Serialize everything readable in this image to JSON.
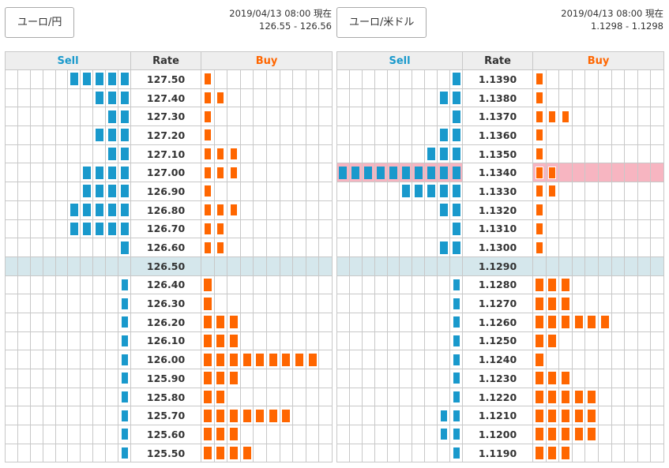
{
  "colors": {
    "sell": "#1999cc",
    "buy": "#ff6600",
    "current_row": "#d5e7ec",
    "highlight_row": "#f7b5c1"
  },
  "headers": {
    "sell": "Sell",
    "rate": "Rate",
    "buy": "Buy"
  },
  "panels": [
    {
      "pair_label": "ユーロ/円",
      "timestamp": "2019/04/13 08:00 現在",
      "bid_ask": "126.55 - 126.56",
      "sell_cells": 10,
      "buy_cells": 10,
      "rows": [
        {
          "rate": "127.50",
          "sell": {
            "filled": 5,
            "empty": 0
          },
          "buy": {
            "filled": 0,
            "empty": 1
          }
        },
        {
          "rate": "127.40",
          "sell": {
            "filled": 3,
            "empty": 0
          },
          "buy": {
            "filled": 0,
            "empty": 2
          }
        },
        {
          "rate": "127.30",
          "sell": {
            "filled": 2,
            "empty": 0
          },
          "buy": {
            "filled": 0,
            "empty": 1
          }
        },
        {
          "rate": "127.20",
          "sell": {
            "filled": 3,
            "empty": 0
          },
          "buy": {
            "filled": 0,
            "empty": 1
          }
        },
        {
          "rate": "127.10",
          "sell": {
            "filled": 2,
            "empty": 0
          },
          "buy": {
            "filled": 0,
            "empty": 3
          }
        },
        {
          "rate": "127.00",
          "sell": {
            "filled": 4,
            "empty": 0
          },
          "buy": {
            "filled": 0,
            "empty": 3
          }
        },
        {
          "rate": "126.90",
          "sell": {
            "filled": 4,
            "empty": 0
          },
          "buy": {
            "filled": 0,
            "empty": 1
          }
        },
        {
          "rate": "126.80",
          "sell": {
            "filled": 5,
            "empty": 0
          },
          "buy": {
            "filled": 0,
            "empty": 3
          }
        },
        {
          "rate": "126.70",
          "sell": {
            "filled": 5,
            "empty": 0
          },
          "buy": {
            "filled": 0,
            "empty": 2
          }
        },
        {
          "rate": "126.60",
          "sell": {
            "filled": 1,
            "empty": 0
          },
          "buy": {
            "filled": 0,
            "empty": 2
          }
        },
        {
          "rate": "126.50",
          "current": true,
          "sell": {
            "filled": 0,
            "empty": 0
          },
          "buy": {
            "filled": 0,
            "empty": 0
          }
        },
        {
          "rate": "126.40",
          "sell": {
            "filled": 0,
            "empty": 1
          },
          "buy": {
            "filled": 1,
            "empty": 0
          }
        },
        {
          "rate": "126.30",
          "sell": {
            "filled": 0,
            "empty": 1
          },
          "buy": {
            "filled": 1,
            "empty": 0
          }
        },
        {
          "rate": "126.20",
          "sell": {
            "filled": 0,
            "empty": 1
          },
          "buy": {
            "filled": 3,
            "empty": 0
          }
        },
        {
          "rate": "126.10",
          "sell": {
            "filled": 0,
            "empty": 1
          },
          "buy": {
            "filled": 3,
            "empty": 0
          }
        },
        {
          "rate": "126.00",
          "sell": {
            "filled": 0,
            "empty": 1
          },
          "buy": {
            "filled": 9,
            "empty": 0
          }
        },
        {
          "rate": "125.90",
          "sell": {
            "filled": 0,
            "empty": 1
          },
          "buy": {
            "filled": 3,
            "empty": 0
          }
        },
        {
          "rate": "125.80",
          "sell": {
            "filled": 0,
            "empty": 1
          },
          "buy": {
            "filled": 2,
            "empty": 0
          }
        },
        {
          "rate": "125.70",
          "sell": {
            "filled": 0,
            "empty": 1
          },
          "buy": {
            "filled": 7,
            "empty": 0
          }
        },
        {
          "rate": "125.60",
          "sell": {
            "filled": 0,
            "empty": 1
          },
          "buy": {
            "filled": 3,
            "empty": 0
          }
        },
        {
          "rate": "125.50",
          "sell": {
            "filled": 0,
            "empty": 1
          },
          "buy": {
            "filled": 4,
            "empty": 0
          }
        }
      ]
    },
    {
      "pair_label": "ユーロ/米ドル",
      "timestamp": "2019/04/13 08:00 現在",
      "bid_ask": "1.1298 - 1.1298",
      "sell_cells": 10,
      "buy_cells": 10,
      "rows": [
        {
          "rate": "1.1390",
          "sell": {
            "filled": 1,
            "empty": 0
          },
          "buy": {
            "filled": 0,
            "empty": 1
          }
        },
        {
          "rate": "1.1380",
          "sell": {
            "filled": 2,
            "empty": 0
          },
          "buy": {
            "filled": 0,
            "empty": 1
          }
        },
        {
          "rate": "1.1370",
          "sell": {
            "filled": 1,
            "empty": 0
          },
          "buy": {
            "filled": 0,
            "empty": 3
          }
        },
        {
          "rate": "1.1360",
          "sell": {
            "filled": 2,
            "empty": 0
          },
          "buy": {
            "filled": 0,
            "empty": 1
          }
        },
        {
          "rate": "1.1350",
          "sell": {
            "filled": 3,
            "empty": 0
          },
          "buy": {
            "filled": 0,
            "empty": 1
          }
        },
        {
          "rate": "1.1340",
          "highlight": true,
          "sell": {
            "filled": 10,
            "empty": 0
          },
          "buy": {
            "filled": 0,
            "empty": 2
          }
        },
        {
          "rate": "1.1330",
          "sell": {
            "filled": 5,
            "empty": 0
          },
          "buy": {
            "filled": 0,
            "empty": 2
          }
        },
        {
          "rate": "1.1320",
          "sell": {
            "filled": 2,
            "empty": 0
          },
          "buy": {
            "filled": 0,
            "empty": 1
          }
        },
        {
          "rate": "1.1310",
          "sell": {
            "filled": 1,
            "empty": 0
          },
          "buy": {
            "filled": 0,
            "empty": 1
          }
        },
        {
          "rate": "1.1300",
          "sell": {
            "filled": 2,
            "empty": 0
          },
          "buy": {
            "filled": 0,
            "empty": 1
          }
        },
        {
          "rate": "1.1290",
          "current": true,
          "sell": {
            "filled": 0,
            "empty": 0
          },
          "buy": {
            "filled": 0,
            "empty": 0
          }
        },
        {
          "rate": "1.1280",
          "sell": {
            "filled": 0,
            "empty": 1
          },
          "buy": {
            "filled": 3,
            "empty": 0
          }
        },
        {
          "rate": "1.1270",
          "sell": {
            "filled": 0,
            "empty": 1
          },
          "buy": {
            "filled": 3,
            "empty": 0
          }
        },
        {
          "rate": "1.1260",
          "sell": {
            "filled": 0,
            "empty": 1
          },
          "buy": {
            "filled": 6,
            "empty": 0
          }
        },
        {
          "rate": "1.1250",
          "sell": {
            "filled": 0,
            "empty": 1
          },
          "buy": {
            "filled": 2,
            "empty": 0
          }
        },
        {
          "rate": "1.1240",
          "sell": {
            "filled": 0,
            "empty": 1
          },
          "buy": {
            "filled": 1,
            "empty": 0
          }
        },
        {
          "rate": "1.1230",
          "sell": {
            "filled": 0,
            "empty": 1
          },
          "buy": {
            "filled": 3,
            "empty": 0
          }
        },
        {
          "rate": "1.1220",
          "sell": {
            "filled": 0,
            "empty": 1
          },
          "buy": {
            "filled": 5,
            "empty": 0
          }
        },
        {
          "rate": "1.1210",
          "sell": {
            "filled": 0,
            "empty": 2
          },
          "buy": {
            "filled": 5,
            "empty": 0
          }
        },
        {
          "rate": "1.1200",
          "sell": {
            "filled": 0,
            "empty": 2
          },
          "buy": {
            "filled": 5,
            "empty": 0
          }
        },
        {
          "rate": "1.1190",
          "sell": {
            "filled": 0,
            "empty": 1
          },
          "buy": {
            "filled": 3,
            "empty": 0
          }
        }
      ]
    }
  ]
}
